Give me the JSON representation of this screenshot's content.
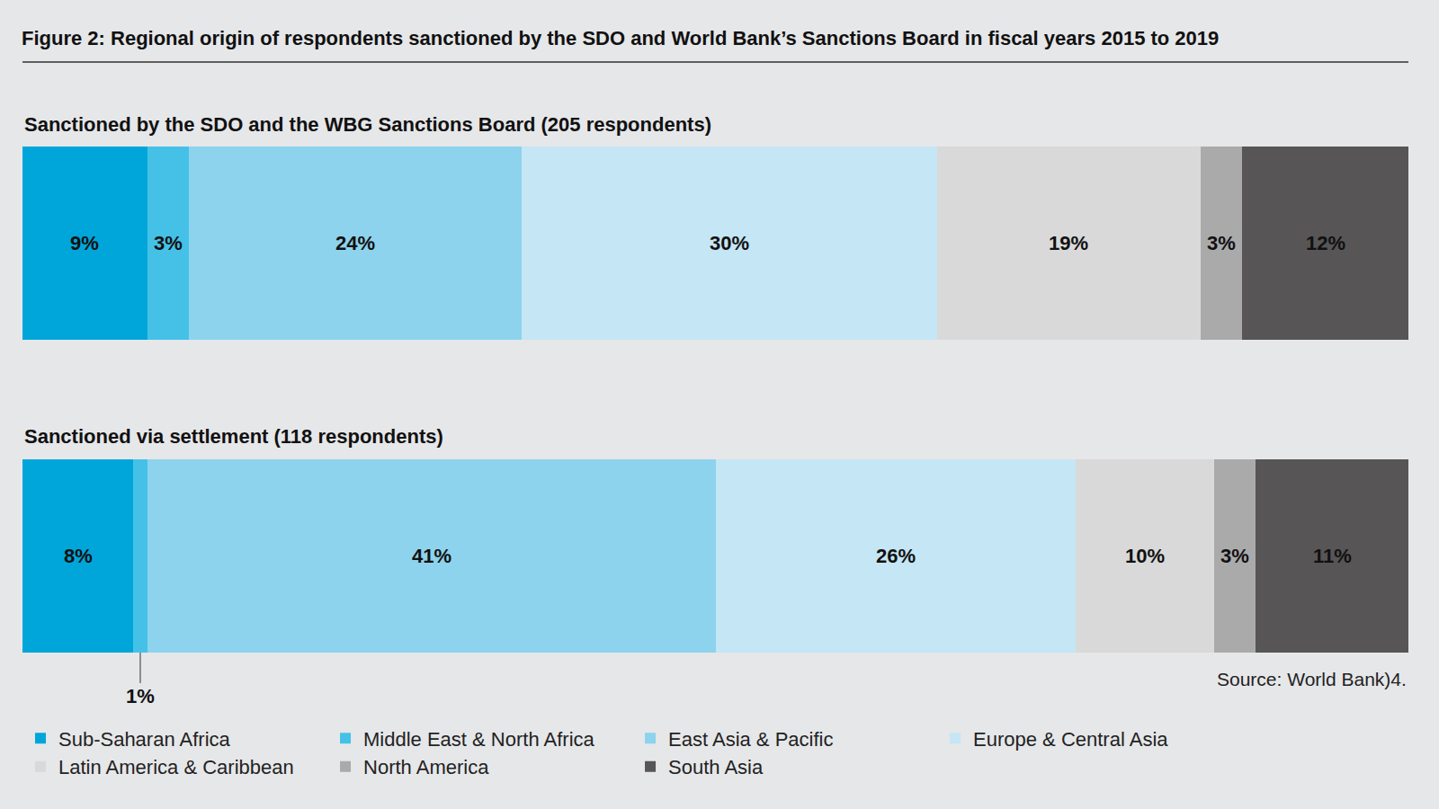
{
  "chart_data": {
    "type": "bar",
    "title": "Figure 2: Regional origin of respondents sanctioned by the SDO and World Bank’s Sanctions Board in fiscal years 2015 to 2019",
    "source": "Source: World Bank)4.",
    "orientation": "horizontal",
    "stacked": true,
    "data_labels": true,
    "tick_labels": false,
    "grid": false,
    "legend": "bottom",
    "xlim": [
      0,
      100
    ],
    "categories": [
      "Sanctioned by the SDO and the WBG Sanctions Board (205 respondents)",
      "Sanctioned via settlement (118 respondents)"
    ],
    "series": [
      {
        "name": "Sub-Saharan Africa",
        "color": "#00a6da",
        "values": [
          9,
          8
        ],
        "value_labels": [
          "9%",
          "8%"
        ]
      },
      {
        "name": "Middle East & North Africa",
        "color": "#45c1e7",
        "values": [
          3,
          1
        ],
        "value_labels": [
          "3%",
          "1%"
        ]
      },
      {
        "name": "East Asia & Pacific",
        "color": "#8dd3ed",
        "values": [
          24,
          41
        ],
        "value_labels": [
          "24%",
          "41%"
        ]
      },
      {
        "name": "Europe & Central Asia",
        "color": "#c5e6f5",
        "values": [
          30,
          26
        ],
        "value_labels": [
          "30%",
          "26%"
        ]
      },
      {
        "name": "Latin America & Caribbean",
        "color": "#d9d9da",
        "values": [
          19,
          10
        ],
        "value_labels": [
          "19%",
          "10%"
        ]
      },
      {
        "name": "North America",
        "color": "#aaaaab",
        "values": [
          3,
          3
        ],
        "value_labels": [
          "3%",
          "3%"
        ]
      },
      {
        "name": "South Asia",
        "color": "#575556",
        "values": [
          12,
          11
        ],
        "value_labels": [
          "12%",
          "11%"
        ]
      }
    ]
  }
}
